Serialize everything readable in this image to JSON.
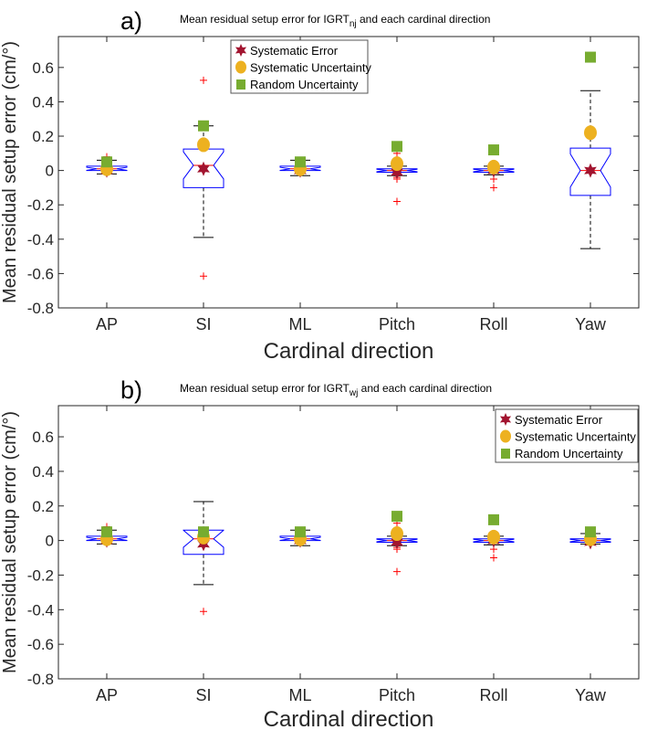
{
  "colors": {
    "box": "#0000ff",
    "median": "#ff0000",
    "outlier": "#ff0000",
    "whisker": "#000000",
    "sys_error": "#a2142f",
    "sys_unc": "#edb120",
    "random_unc": "#77ac30"
  },
  "chart_data": [
    {
      "type": "box",
      "panel_label": "a)",
      "title_prefix": "Mean residual setup error for IGRT",
      "title_sub": "nj",
      "title_suffix": " and each cardinal direction",
      "xlabel": "Cardinal direction",
      "ylabel": "Mean residual setup error (cm/°)",
      "ylim": [
        -0.8,
        0.78
      ],
      "yticks": [
        -0.8,
        -0.6,
        -0.4,
        -0.2,
        0,
        0.2,
        0.4,
        0.6
      ],
      "ytick_labels": [
        "-0.8",
        "-0.6",
        "-0.4",
        "-0.2",
        "0",
        "0.2",
        "0.4",
        "0.6"
      ],
      "categories": [
        "AP",
        "SI",
        "ML",
        "Pitch",
        "Roll",
        "Yaw"
      ],
      "legend_position": "top-center",
      "legend": [
        "Systematic Error",
        "Systematic Uncertainty",
        "Random Uncertainty"
      ],
      "boxes": [
        {
          "q1": 0.0,
          "median": 0.01,
          "q3": 0.025,
          "wlo": -0.02,
          "whi": 0.06,
          "outliers": [
            0.08
          ]
        },
        {
          "q1": -0.1,
          "median": 0.03,
          "q3": 0.125,
          "wlo": -0.39,
          "whi": 0.26,
          "outliers": [
            0.525,
            -0.615
          ]
        },
        {
          "q1": 0.0,
          "median": 0.01,
          "q3": 0.025,
          "wlo": -0.03,
          "whi": 0.06,
          "outliers": []
        },
        {
          "q1": -0.01,
          "median": 0.0,
          "q3": 0.01,
          "wlo": -0.03,
          "whi": 0.025,
          "outliers": [
            0.1,
            -0.04,
            -0.05,
            -0.18
          ]
        },
        {
          "q1": -0.01,
          "median": 0.0,
          "q3": 0.01,
          "wlo": -0.025,
          "whi": 0.025,
          "outliers": [
            -0.05,
            -0.1
          ]
        },
        {
          "q1": -0.145,
          "median": 0.0,
          "q3": 0.13,
          "wlo": -0.455,
          "whi": 0.465,
          "outliers": []
        }
      ],
      "series": [
        {
          "name": "Systematic Error",
          "values": [
            0.0,
            0.01,
            0.0,
            -0.01,
            0.0,
            0.0
          ]
        },
        {
          "name": "Systematic Uncertainty",
          "values": [
            0.01,
            0.15,
            0.01,
            0.04,
            0.02,
            0.22
          ]
        },
        {
          "name": "Random Uncertainty",
          "values": [
            0.05,
            0.26,
            0.05,
            0.14,
            0.12,
            0.66
          ]
        }
      ]
    },
    {
      "type": "box",
      "panel_label": "b)",
      "title_prefix": "Mean residual setup error for IGRT",
      "title_sub": "wj",
      "title_suffix": " and each cardinal direction",
      "xlabel": "Cardinal direction",
      "ylabel": "Mean residual setup error (cm/°)",
      "ylim": [
        -0.8,
        0.78
      ],
      "yticks": [
        -0.8,
        -0.6,
        -0.4,
        -0.2,
        0,
        0.2,
        0.4,
        0.6
      ],
      "ytick_labels": [
        "-0.8",
        "-0.6",
        "-0.4",
        "-0.2",
        "0",
        "0.2",
        "0.4",
        "0.6"
      ],
      "categories": [
        "AP",
        "SI",
        "ML",
        "Pitch",
        "Roll",
        "Yaw"
      ],
      "legend_position": "top-right",
      "legend": [
        "Systematic Error",
        "Systematic Uncertainty",
        "Random Uncertainty"
      ],
      "boxes": [
        {
          "q1": 0.0,
          "median": 0.01,
          "q3": 0.025,
          "wlo": -0.02,
          "whi": 0.06,
          "outliers": [
            0.08
          ]
        },
        {
          "q1": -0.08,
          "median": 0.01,
          "q3": 0.06,
          "wlo": -0.255,
          "whi": 0.225,
          "outliers": [
            -0.41
          ]
        },
        {
          "q1": 0.0,
          "median": 0.01,
          "q3": 0.025,
          "wlo": -0.03,
          "whi": 0.06,
          "outliers": []
        },
        {
          "q1": -0.01,
          "median": 0.0,
          "q3": 0.01,
          "wlo": -0.03,
          "whi": 0.025,
          "outliers": [
            0.1,
            -0.04,
            -0.05,
            -0.18
          ]
        },
        {
          "q1": -0.01,
          "median": 0.0,
          "q3": 0.01,
          "wlo": -0.025,
          "whi": 0.025,
          "outliers": [
            -0.05,
            -0.1
          ]
        },
        {
          "q1": -0.01,
          "median": 0.0,
          "q3": 0.01,
          "wlo": -0.02,
          "whi": 0.04,
          "outliers": []
        }
      ],
      "series": [
        {
          "name": "Systematic Error",
          "values": [
            0.0,
            -0.02,
            0.0,
            -0.01,
            0.0,
            -0.01
          ]
        },
        {
          "name": "Systematic Uncertainty",
          "values": [
            0.01,
            0.02,
            0.01,
            0.04,
            0.02,
            0.01
          ]
        },
        {
          "name": "Random Uncertainty",
          "values": [
            0.05,
            0.05,
            0.05,
            0.14,
            0.12,
            0.05
          ]
        }
      ]
    }
  ]
}
